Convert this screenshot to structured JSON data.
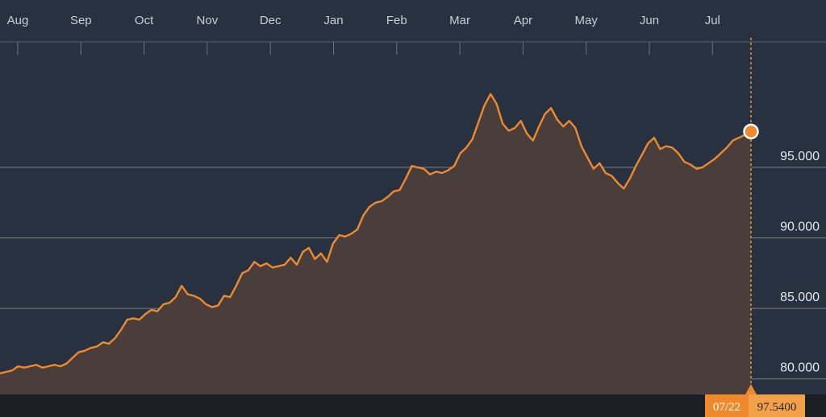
{
  "colors": {
    "background": "#283140",
    "line": "#f0892b",
    "area_fill": "#4a3e3c",
    "grid": "#9a9a9a",
    "bottom_strip": "#1b1e23",
    "month_text": "#c9ced6",
    "value_text": "#e6e9ee",
    "tooltip_left": "#f0892b",
    "tooltip_right": "#f2a04a"
  },
  "tooltip": {
    "date": "07/22",
    "value": "97.5400"
  },
  "chart_data": {
    "type": "area",
    "title": "",
    "xlabel": "",
    "ylabel": "",
    "months": [
      "Aug",
      "Sep",
      "Oct",
      "Nov",
      "Dec",
      "Jan",
      "Feb",
      "Mar",
      "Apr",
      "May",
      "Jun",
      "Jul"
    ],
    "yticks": [
      80,
      85,
      90,
      95
    ],
    "ytick_labels": [
      "80.000",
      "85.000",
      "90.000",
      "95.000"
    ],
    "ylim": [
      78.9,
      103.9
    ],
    "grid": true,
    "last_point": {
      "date": "07/22",
      "value": 97.54
    },
    "series": [
      {
        "values": [
          80.4,
          80.5,
          80.6,
          80.9,
          80.8,
          80.9,
          81.0,
          80.8,
          80.9,
          81.0,
          80.9,
          81.1,
          81.5,
          81.9,
          82.0,
          82.2,
          82.3,
          82.6,
          82.5,
          82.9,
          83.5,
          84.2,
          84.3,
          84.2,
          84.6,
          84.9,
          84.8,
          85.3,
          85.4,
          85.8,
          86.6,
          86.0,
          85.9,
          85.7,
          85.3,
          85.1,
          85.2,
          85.9,
          85.8,
          86.6,
          87.5,
          87.7,
          88.3,
          88.0,
          88.2,
          87.9,
          88.0,
          88.1,
          88.6,
          88.1,
          89.0,
          89.3,
          88.5,
          88.9,
          88.3,
          89.6,
          90.2,
          90.1,
          90.3,
          90.6,
          91.6,
          92.2,
          92.5,
          92.6,
          92.9,
          93.3,
          93.4,
          94.2,
          95.1,
          95.0,
          94.9,
          94.5,
          94.7,
          94.6,
          94.8,
          95.1,
          96.0,
          96.4,
          97.0,
          98.2,
          99.4,
          100.2,
          99.5,
          98.1,
          97.6,
          97.8,
          98.3,
          97.4,
          96.9,
          97.9,
          98.8,
          99.2,
          98.4,
          97.9,
          98.3,
          97.8,
          96.5,
          95.7,
          94.9,
          95.3,
          94.6,
          94.4,
          93.9,
          93.5,
          94.2,
          95.1,
          95.9,
          96.7,
          97.1,
          96.3,
          96.5,
          96.4,
          96.0,
          95.4,
          95.2,
          94.9,
          95.0,
          95.3,
          95.6,
          96.0,
          96.4,
          96.9,
          97.1,
          97.3,
          97.54
        ]
      }
    ]
  }
}
